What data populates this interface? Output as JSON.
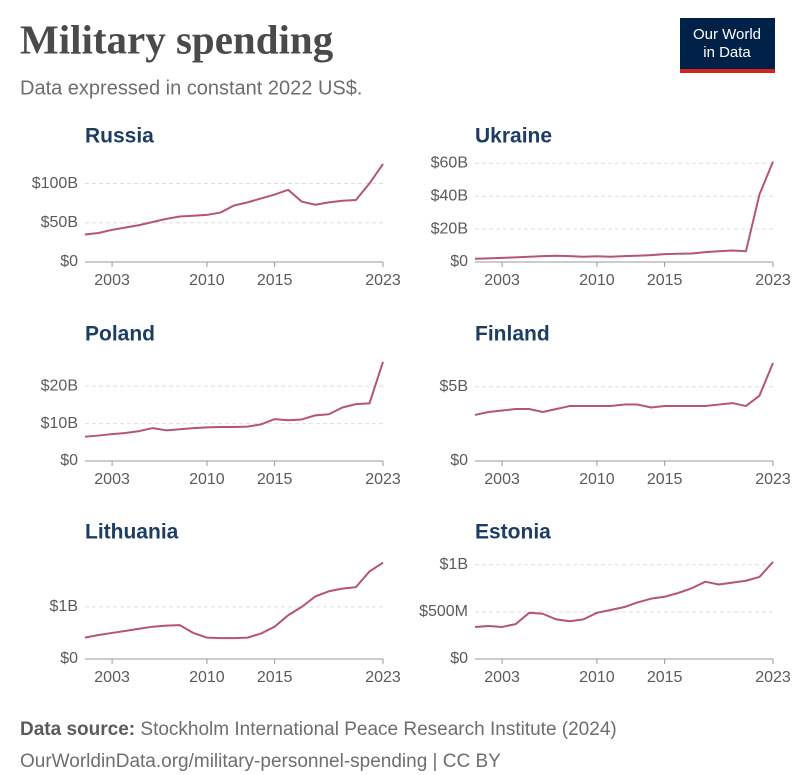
{
  "title": "Military spending",
  "subtitle": "Data expressed in constant 2022 US$.",
  "logo": [
    "Our World",
    "in Data"
  ],
  "source_label": "Data source:",
  "source_text": "Stockholm International Peace Research Institute (2024)",
  "footer": "OurWorldinData.org/military-personnel-spending | CC BY",
  "chart_data": [
    {
      "type": "line",
      "title": "Russia",
      "color": "#b5566e",
      "x": [
        2001,
        2002,
        2003,
        2004,
        2005,
        2006,
        2007,
        2008,
        2009,
        2010,
        2011,
        2012,
        2013,
        2014,
        2015,
        2016,
        2017,
        2018,
        2019,
        2020,
        2021,
        2022,
        2023
      ],
      "values": [
        35,
        37,
        41,
        44,
        47,
        51,
        55,
        58,
        59,
        60,
        63,
        72,
        76,
        81,
        86,
        92,
        77,
        73,
        76,
        78,
        79,
        100,
        125
      ],
      "xlim": [
        2001,
        2023
      ],
      "xticks": [
        2003,
        2010,
        2015,
        2023
      ],
      "ylim": [
        0,
        130
      ],
      "yticks": [
        {
          "value": 0,
          "label": "$0"
        },
        {
          "value": 50,
          "label": "$50B"
        },
        {
          "value": 100,
          "label": "$100B"
        }
      ],
      "grid": true
    },
    {
      "type": "line",
      "title": "Ukraine",
      "color": "#b5566e",
      "x": [
        2001,
        2002,
        2003,
        2004,
        2005,
        2006,
        2007,
        2008,
        2009,
        2010,
        2011,
        2012,
        2013,
        2014,
        2015,
        2016,
        2017,
        2018,
        2019,
        2020,
        2021,
        2022,
        2023
      ],
      "values": [
        2,
        2.2,
        2.5,
        2.8,
        3.2,
        3.6,
        3.8,
        3.6,
        3.2,
        3.5,
        3.2,
        3.6,
        3.8,
        4.2,
        4.8,
        5,
        5.2,
        6,
        6.5,
        7,
        6.5,
        41,
        61
      ],
      "xlim": [
        2001,
        2023
      ],
      "xticks": [
        2003,
        2010,
        2015,
        2023
      ],
      "ylim": [
        0,
        62
      ],
      "yticks": [
        {
          "value": 0,
          "label": "$0"
        },
        {
          "value": 20,
          "label": "$20B"
        },
        {
          "value": 40,
          "label": "$40B"
        },
        {
          "value": 60,
          "label": "$60B"
        }
      ],
      "grid": true
    },
    {
      "type": "line",
      "title": "Poland",
      "color": "#b5566e",
      "x": [
        2001,
        2002,
        2003,
        2004,
        2005,
        2006,
        2007,
        2008,
        2009,
        2010,
        2011,
        2012,
        2013,
        2014,
        2015,
        2016,
        2017,
        2018,
        2019,
        2020,
        2021,
        2022,
        2023
      ],
      "values": [
        6.5,
        6.8,
        7.2,
        7.5,
        8,
        8.8,
        8.2,
        8.5,
        8.8,
        9,
        9.1,
        9.1,
        9.2,
        9.8,
        11.2,
        10.9,
        11.1,
        12.2,
        12.5,
        14.3,
        15.2,
        15.4,
        26.5
      ],
      "xlim": [
        2001,
        2023
      ],
      "xticks": [
        2003,
        2010,
        2015,
        2023
      ],
      "ylim": [
        0,
        27
      ],
      "yticks": [
        {
          "value": 0,
          "label": "$0"
        },
        {
          "value": 10,
          "label": "$10B"
        },
        {
          "value": 20,
          "label": "$20B"
        }
      ],
      "grid": true
    },
    {
      "type": "line",
      "title": "Finland",
      "color": "#b5566e",
      "x": [
        2001,
        2002,
        2003,
        2004,
        2005,
        2006,
        2007,
        2008,
        2009,
        2010,
        2011,
        2012,
        2013,
        2014,
        2015,
        2016,
        2017,
        2018,
        2019,
        2020,
        2021,
        2022,
        2023
      ],
      "values": [
        3.1,
        3.3,
        3.4,
        3.5,
        3.5,
        3.3,
        3.5,
        3.7,
        3.7,
        3.7,
        3.7,
        3.8,
        3.8,
        3.6,
        3.7,
        3.7,
        3.7,
        3.7,
        3.8,
        3.9,
        3.7,
        4.4,
        6.6
      ],
      "xlim": [
        2001,
        2023
      ],
      "xticks": [
        2003,
        2010,
        2015,
        2023
      ],
      "ylim": [
        0,
        6.8
      ],
      "yticks": [
        {
          "value": 0,
          "label": "$0"
        },
        {
          "value": 5,
          "label": "$5B"
        }
      ],
      "grid": true
    },
    {
      "type": "line",
      "title": "Lithuania",
      "color": "#b5566e",
      "x": [
        2001,
        2002,
        2003,
        2004,
        2005,
        2006,
        2007,
        2008,
        2009,
        2010,
        2011,
        2012,
        2013,
        2014,
        2015,
        2016,
        2017,
        2018,
        2019,
        2020,
        2021,
        2022,
        2023
      ],
      "values": [
        0.41,
        0.46,
        0.5,
        0.54,
        0.58,
        0.62,
        0.64,
        0.65,
        0.5,
        0.41,
        0.4,
        0.4,
        0.41,
        0.49,
        0.62,
        0.84,
        1.0,
        1.2,
        1.3,
        1.35,
        1.38,
        1.68,
        1.85
      ],
      "xlim": [
        2001,
        2023
      ],
      "xticks": [
        2003,
        2010,
        2015,
        2023
      ],
      "ylim": [
        0,
        1.9
      ],
      "yticks": [
        {
          "value": 0,
          "label": "$0"
        },
        {
          "value": 1,
          "label": "$1B"
        }
      ],
      "grid": true
    },
    {
      "type": "line",
      "title": "Estonia",
      "color": "#b5566e",
      "x": [
        2001,
        2002,
        2003,
        2004,
        2005,
        2006,
        2007,
        2008,
        2009,
        2010,
        2011,
        2012,
        2013,
        2014,
        2015,
        2016,
        2017,
        2018,
        2019,
        2020,
        2021,
        2022,
        2023
      ],
      "values": [
        0.34,
        0.35,
        0.34,
        0.37,
        0.49,
        0.48,
        0.42,
        0.4,
        0.42,
        0.49,
        0.52,
        0.55,
        0.6,
        0.64,
        0.66,
        0.7,
        0.75,
        0.82,
        0.79,
        0.81,
        0.83,
        0.87,
        1.03
      ],
      "xlim": [
        2001,
        2023
      ],
      "xticks": [
        2003,
        2010,
        2015,
        2023
      ],
      "ylim": [
        0,
        1.05
      ],
      "yticks": [
        {
          "value": 0,
          "label": "$0"
        },
        {
          "value": 0.5,
          "label": "$500M"
        },
        {
          "value": 1,
          "label": "$1B"
        }
      ],
      "grid": true
    }
  ]
}
